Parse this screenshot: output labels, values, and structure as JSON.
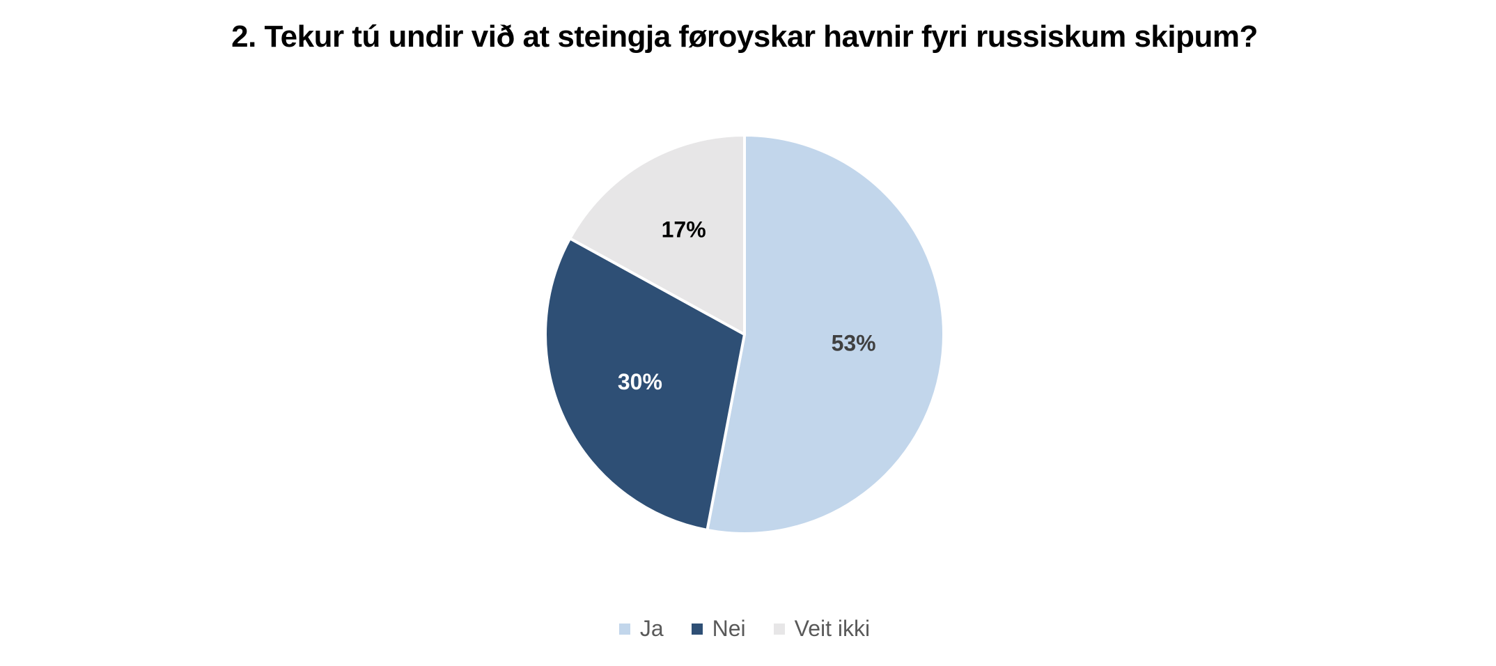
{
  "chart_data": {
    "type": "pie",
    "title": "2. Tekur tú undir við at steingja føroyskar havnir fyri russiskum skipum?",
    "categories": [
      "Ja",
      "Nei",
      "Veit ikki"
    ],
    "values": [
      53,
      30,
      17
    ],
    "data_labels": [
      "53%",
      "30%",
      "17%"
    ],
    "colors": [
      "#C2D6EB",
      "#2E4F75",
      "#E7E6E7"
    ],
    "label_colors": [
      "#404040",
      "#FFFFFF",
      "#000000"
    ],
    "start_angle": "12 o'clock, clockwise",
    "legend_position": "bottom"
  }
}
